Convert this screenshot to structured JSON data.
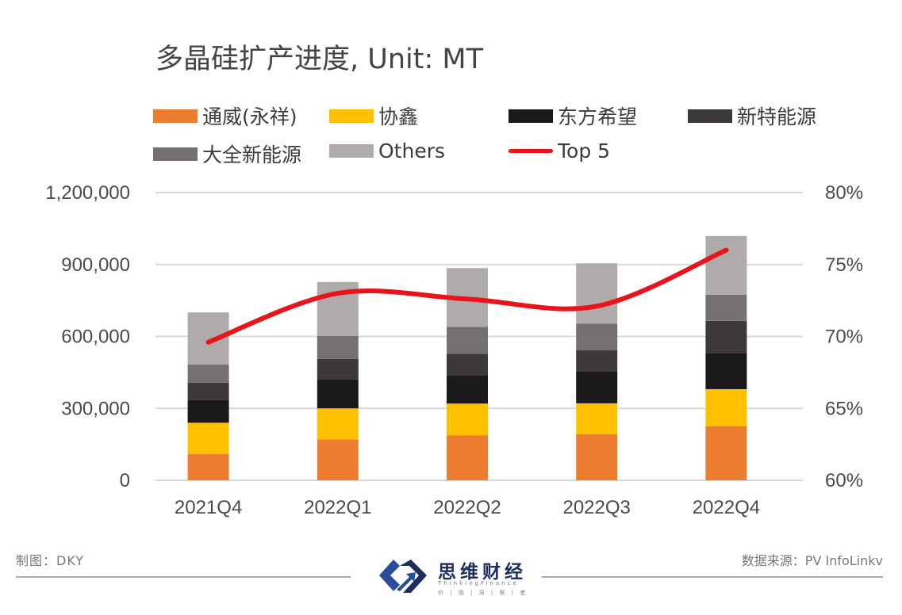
{
  "chart_data": {
    "type": "bar",
    "stacked": true,
    "title": "多晶硅扩产进度, Unit: MT",
    "categories": [
      "2021Q4",
      "2022Q1",
      "2022Q2",
      "2022Q3",
      "2022Q4"
    ],
    "series": [
      {
        "name": "通威(永祥)",
        "color": "#ED7D31",
        "values": [
          110000,
          170000,
          188000,
          192000,
          225000
        ]
      },
      {
        "name": "协鑫",
        "color": "#FFC000",
        "values": [
          130000,
          130000,
          132000,
          129000,
          155000
        ]
      },
      {
        "name": "东方希望",
        "color": "#1B1919",
        "values": [
          95000,
          120000,
          119000,
          132000,
          149000
        ]
      },
      {
        "name": "新特能源",
        "color": "#3D3939",
        "values": [
          72000,
          86000,
          89000,
          89000,
          136000
        ]
      },
      {
        "name": "大全新能源",
        "color": "#767171",
        "values": [
          76000,
          96000,
          112000,
          112000,
          109000
        ]
      },
      {
        "name": "Others",
        "color": "#AFABAB",
        "values": [
          217000,
          225000,
          245000,
          251000,
          245000
        ]
      }
    ],
    "line_series": {
      "name": "Top 5",
      "color": "#E8141B",
      "axis": "right",
      "values": [
        69.6,
        73.0,
        72.6,
        72.1,
        76.0
      ],
      "unit": "%"
    },
    "xlabel": "",
    "ylabel": "",
    "ylim": [
      0,
      1200000
    ],
    "y_ticks": [
      "0",
      "300,000",
      "600,000",
      "900,000",
      "1,200,000"
    ],
    "y_tick_values": [
      0,
      300000,
      600000,
      900000,
      1200000
    ],
    "y2lim": [
      60,
      80
    ],
    "y2_ticks": [
      "60%",
      "65%",
      "70%",
      "75%",
      "80%"
    ],
    "y2_tick_values": [
      60,
      65,
      70,
      75,
      80
    ],
    "grid": true,
    "legend_position": "top"
  },
  "title": {
    "main": "多晶硅扩产进度, Unit: MT"
  },
  "legend": [
    {
      "label": "通威(永祥)",
      "color": "#ED7D31",
      "kind": "bar"
    },
    {
      "label": "协鑫",
      "color": "#FFC000",
      "kind": "bar"
    },
    {
      "label": "东方希望",
      "color": "#1B1919",
      "kind": "bar"
    },
    {
      "label": "新特能源",
      "color": "#3D3939",
      "kind": "bar"
    },
    {
      "label": "大全新能源",
      "color": "#767171",
      "kind": "bar"
    },
    {
      "label": "Others",
      "color": "#AFABAB",
      "kind": "bar"
    },
    {
      "label": "Top 5",
      "color": "#E8141B",
      "kind": "line"
    }
  ],
  "footer": {
    "credit": "制图：DKY",
    "source": "数据来源：PV InfoLinkv",
    "logo_name": "思维财经",
    "logo_sub": "ThinkingFinance",
    "logo_tagline": "价 | 值 | 洞 | 察 | 者",
    "logo_color": "#1E2F5C"
  }
}
